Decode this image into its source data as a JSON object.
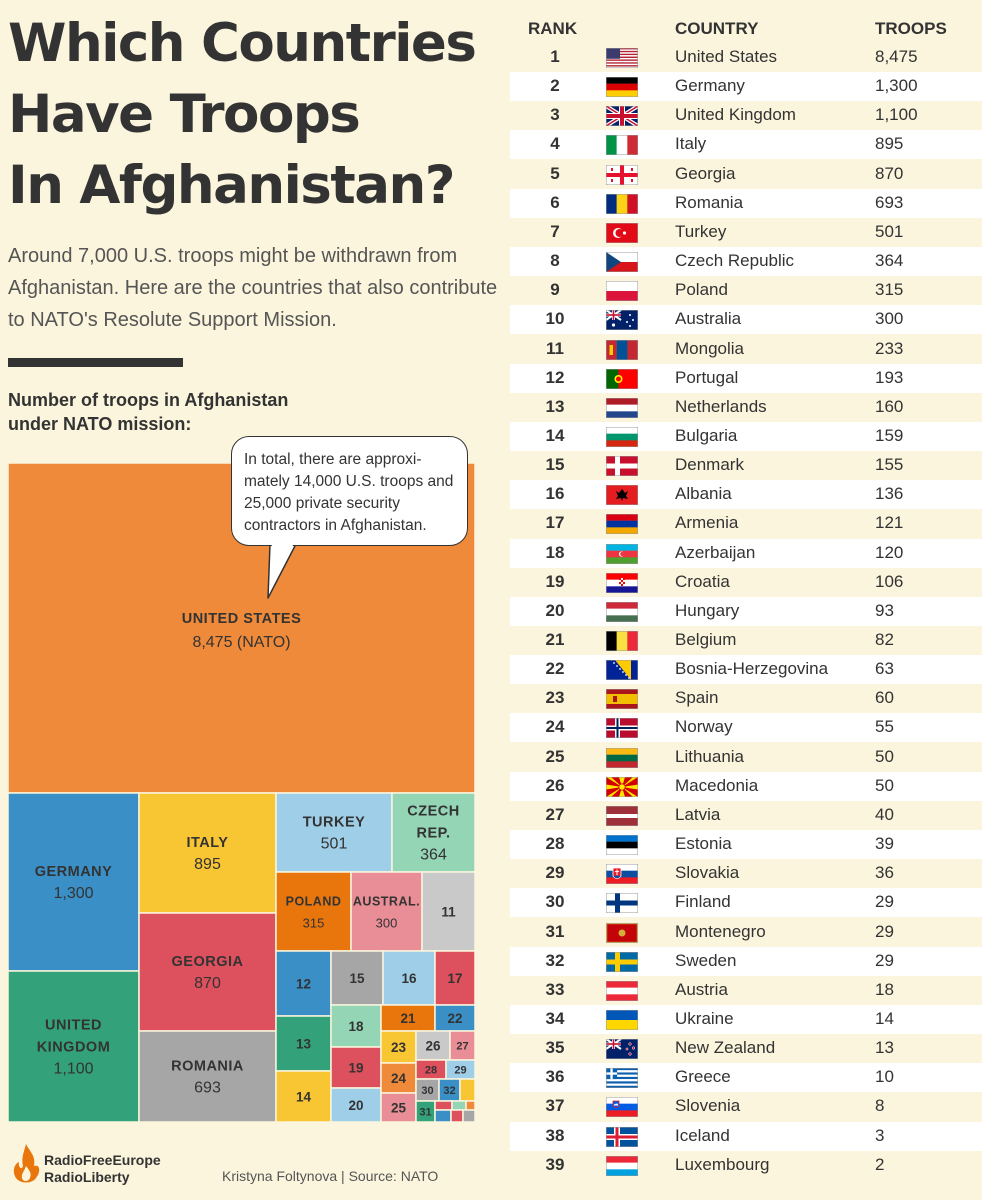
{
  "header": {
    "title_lines": [
      "Which Countries",
      "Have Troops",
      "In Afghanistan?"
    ],
    "subtitle": "Around 7,000 U.S. troops might be withdrawn from Afghanistan. Here are the countries that also contribute to NATO's Resolute Support Mission.",
    "chart_label": "Number of troops in Afghanistan under NATO mission:"
  },
  "callout": {
    "text": "In total, there are approxi-mately 14,000 U.S. troops and 25,000 private security contractors in Afghanistan."
  },
  "table": {
    "headers": {
      "rank": "RANK",
      "country": "COUNTRY",
      "troops": "TROOPS"
    },
    "rows": [
      {
        "rank": "1",
        "country": "United States",
        "troops": "8,475",
        "flag": "us"
      },
      {
        "rank": "2",
        "country": "Germany",
        "troops": "1,300",
        "flag": "de"
      },
      {
        "rank": "3",
        "country": "United Kingdom",
        "troops": "1,100",
        "flag": "gb"
      },
      {
        "rank": "4",
        "country": "Italy",
        "troops": "895",
        "flag": "it"
      },
      {
        "rank": "5",
        "country": "Georgia",
        "troops": "870",
        "flag": "ge"
      },
      {
        "rank": "6",
        "country": "Romania",
        "troops": "693",
        "flag": "ro"
      },
      {
        "rank": "7",
        "country": "Turkey",
        "troops": "501",
        "flag": "tr"
      },
      {
        "rank": "8",
        "country": "Czech Republic",
        "troops": "364",
        "flag": "cz"
      },
      {
        "rank": "9",
        "country": "Poland",
        "troops": "315",
        "flag": "pl"
      },
      {
        "rank": "10",
        "country": "Australia",
        "troops": "300",
        "flag": "au"
      },
      {
        "rank": "11",
        "country": "Mongolia",
        "troops": "233",
        "flag": "mn"
      },
      {
        "rank": "12",
        "country": "Portugal",
        "troops": "193",
        "flag": "pt"
      },
      {
        "rank": "13",
        "country": "Netherlands",
        "troops": "160",
        "flag": "nl"
      },
      {
        "rank": "14",
        "country": "Bulgaria",
        "troops": "159",
        "flag": "bg"
      },
      {
        "rank": "15",
        "country": "Denmark",
        "troops": "155",
        "flag": "dk"
      },
      {
        "rank": "16",
        "country": "Albania",
        "troops": "136",
        "flag": "al"
      },
      {
        "rank": "17",
        "country": "Armenia",
        "troops": "121",
        "flag": "am"
      },
      {
        "rank": "18",
        "country": "Azerbaijan",
        "troops": "120",
        "flag": "az"
      },
      {
        "rank": "19",
        "country": "Croatia",
        "troops": "106",
        "flag": "hr"
      },
      {
        "rank": "20",
        "country": "Hungary",
        "troops": "93",
        "flag": "hu"
      },
      {
        "rank": "21",
        "country": "Belgium",
        "troops": "82",
        "flag": "be"
      },
      {
        "rank": "22",
        "country": "Bosnia-Herzegovina",
        "troops": "63",
        "flag": "ba"
      },
      {
        "rank": "23",
        "country": "Spain",
        "troops": "60",
        "flag": "es"
      },
      {
        "rank": "24",
        "country": "Norway",
        "troops": "55",
        "flag": "no"
      },
      {
        "rank": "25",
        "country": "Lithuania",
        "troops": "50",
        "flag": "lt"
      },
      {
        "rank": "26",
        "country": "Macedonia",
        "troops": "50",
        "flag": "mk"
      },
      {
        "rank": "27",
        "country": "Latvia",
        "troops": "40",
        "flag": "lv"
      },
      {
        "rank": "28",
        "country": "Estonia",
        "troops": "39",
        "flag": "ee"
      },
      {
        "rank": "29",
        "country": "Slovakia",
        "troops": "36",
        "flag": "sk"
      },
      {
        "rank": "30",
        "country": "Finland",
        "troops": "29",
        "flag": "fi"
      },
      {
        "rank": "31",
        "country": "Montenegro",
        "troops": "29",
        "flag": "me"
      },
      {
        "rank": "32",
        "country": "Sweden",
        "troops": "29",
        "flag": "se"
      },
      {
        "rank": "33",
        "country": "Austria",
        "troops": "18",
        "flag": "at"
      },
      {
        "rank": "34",
        "country": "Ukraine",
        "troops": "14",
        "flag": "ua"
      },
      {
        "rank": "35",
        "country": "New Zealand",
        "troops": "13",
        "flag": "nz"
      },
      {
        "rank": "36",
        "country": "Greece",
        "troops": "10",
        "flag": "gr"
      },
      {
        "rank": "37",
        "country": "Slovenia",
        "troops": "8",
        "flag": "si"
      },
      {
        "rank": "38",
        "country": "Iceland",
        "troops": "3",
        "flag": "is"
      },
      {
        "rank": "39",
        "country": "Luxembourg",
        "troops": "2",
        "flag": "lu"
      }
    ]
  },
  "chart_data": {
    "type": "heatmap",
    "subtype": "treemap",
    "cells": [
      {
        "id": "us",
        "rank": 1,
        "label_lines": [
          "UNITED STATES"
        ],
        "value_label": "8,475 (NATO)",
        "value": 8475,
        "color": "#ef8a3a"
      },
      {
        "id": "de",
        "rank": 2,
        "label_lines": [
          "GERMANY"
        ],
        "value_label": "1,300",
        "value": 1300,
        "color": "#3a8fc6"
      },
      {
        "id": "gb",
        "rank": 3,
        "label_lines": [
          "UNITED",
          "KINGDOM"
        ],
        "value_label": "1,100",
        "value": 1100,
        "color": "#33a27a"
      },
      {
        "id": "it",
        "rank": 4,
        "label_lines": [
          "ITALY"
        ],
        "value_label": "895",
        "value": 895,
        "color": "#f8c533"
      },
      {
        "id": "ge",
        "rank": 5,
        "label_lines": [
          "GEORGIA"
        ],
        "value_label": "870",
        "value": 870,
        "color": "#dd505d"
      },
      {
        "id": "ro",
        "rank": 6,
        "label_lines": [
          "ROMANIA"
        ],
        "value_label": "693",
        "value": 693,
        "color": "#a6a6a6"
      },
      {
        "id": "tr",
        "rank": 7,
        "label_lines": [
          "TURKEY"
        ],
        "value_label": "501",
        "value": 501,
        "color": "#9fcfe8"
      },
      {
        "id": "cz",
        "rank": 8,
        "label_lines": [
          "CZECH",
          "REP."
        ],
        "value_label": "364",
        "value": 364,
        "color": "#93d5b5"
      },
      {
        "id": "pl",
        "rank": 9,
        "label_lines": [
          "POLAND"
        ],
        "value_label": "315",
        "value": 315,
        "color": "#e8760c"
      },
      {
        "id": "au",
        "rank": 10,
        "label_lines": [
          "AUSTRAL."
        ],
        "value_label": "300",
        "value": 300,
        "color": "#e98e96"
      },
      {
        "id": "mn",
        "rank": 11,
        "label_lines": [
          "11"
        ],
        "value_label": "",
        "value": 233,
        "color": "#c9c9c9"
      },
      {
        "id": "pt",
        "rank": 12,
        "label_lines": [
          "12"
        ],
        "value_label": "",
        "value": 193,
        "color": "#3a8fc6"
      },
      {
        "id": "nl",
        "rank": 13,
        "label_lines": [
          "13"
        ],
        "value_label": "",
        "value": 160,
        "color": "#33a27a"
      },
      {
        "id": "bg",
        "rank": 14,
        "label_lines": [
          "14"
        ],
        "value_label": "",
        "value": 159,
        "color": "#f8c533"
      },
      {
        "id": "dk",
        "rank": 15,
        "label_lines": [
          "15"
        ],
        "value_label": "",
        "value": 155,
        "color": "#a6a6a6"
      },
      {
        "id": "al",
        "rank": 16,
        "label_lines": [
          "16"
        ],
        "value_label": "",
        "value": 136,
        "color": "#9fcfe8"
      },
      {
        "id": "am",
        "rank": 17,
        "label_lines": [
          "17"
        ],
        "value_label": "",
        "value": 121,
        "color": "#dd505d"
      },
      {
        "id": "az",
        "rank": 18,
        "label_lines": [
          "18"
        ],
        "value_label": "",
        "value": 120,
        "color": "#93d5b5"
      },
      {
        "id": "hr",
        "rank": 19,
        "label_lines": [
          "19"
        ],
        "value_label": "",
        "value": 106,
        "color": "#dd505d"
      },
      {
        "id": "hu",
        "rank": 20,
        "label_lines": [
          "20"
        ],
        "value_label": "",
        "value": 93,
        "color": "#9fcfe8"
      },
      {
        "id": "be",
        "rank": 21,
        "label_lines": [
          "21"
        ],
        "value_label": "",
        "value": 82,
        "color": "#e8760c"
      },
      {
        "id": "ba",
        "rank": 22,
        "label_lines": [
          "22"
        ],
        "value_label": "",
        "value": 63,
        "color": "#3a8fc6"
      },
      {
        "id": "es",
        "rank": 23,
        "label_lines": [
          "23"
        ],
        "value_label": "",
        "value": 60,
        "color": "#f8c533"
      },
      {
        "id": "no",
        "rank": 24,
        "label_lines": [
          "24"
        ],
        "value_label": "",
        "value": 55,
        "color": "#ef8a3a"
      },
      {
        "id": "lt",
        "rank": 25,
        "label_lines": [
          "25"
        ],
        "value_label": "",
        "value": 50,
        "color": "#e98e96"
      },
      {
        "id": "mk",
        "rank": 26,
        "label_lines": [
          "26"
        ],
        "value_label": "",
        "value": 50,
        "color": "#c9c9c9"
      },
      {
        "id": "lv",
        "rank": 27,
        "label_lines": [
          "27"
        ],
        "value_label": "",
        "value": 40,
        "color": "#e98e96"
      },
      {
        "id": "ee",
        "rank": 28,
        "label_lines": [
          "28"
        ],
        "value_label": "",
        "value": 39,
        "color": "#dd505d"
      },
      {
        "id": "sk",
        "rank": 29,
        "label_lines": [
          "29"
        ],
        "value_label": "",
        "value": 36,
        "color": "#9fcfe8"
      },
      {
        "id": "fi",
        "rank": 30,
        "label_lines": [
          "30"
        ],
        "value_label": "",
        "value": 29,
        "color": "#a6a6a6"
      },
      {
        "id": "me",
        "rank": 31,
        "label_lines": [
          "31"
        ],
        "value_label": "",
        "value": 29,
        "color": "#33a27a"
      },
      {
        "id": "se",
        "rank": 32,
        "label_lines": [
          "32"
        ],
        "value_label": "",
        "value": 29,
        "color": "#3a8fc6"
      },
      {
        "id": "at",
        "rank": 33,
        "label_lines": [
          ""
        ],
        "value_label": "",
        "value": 18,
        "color": "#f8c533"
      },
      {
        "id": "ua",
        "rank": 34,
        "label_lines": [
          ""
        ],
        "value_label": "",
        "value": 14,
        "color": "#dd505d"
      },
      {
        "id": "nz",
        "rank": 35,
        "label_lines": [
          ""
        ],
        "value_label": "",
        "value": 13,
        "color": "#93d5b5"
      },
      {
        "id": "gr",
        "rank": 36,
        "label_lines": [
          ""
        ],
        "value_label": "",
        "value": 10,
        "color": "#ef8a3a"
      },
      {
        "id": "si",
        "rank": 37,
        "label_lines": [
          ""
        ],
        "value_label": "",
        "value": 8,
        "color": "#3a8fc6"
      },
      {
        "id": "is",
        "rank": 38,
        "label_lines": [
          ""
        ],
        "value_label": "",
        "value": 3,
        "color": "#dd505d"
      },
      {
        "id": "lu",
        "rank": 39,
        "label_lines": [
          ""
        ],
        "value_label": "",
        "value": 2,
        "color": "#a6a6a6"
      }
    ]
  },
  "footer": {
    "logo_lines": [
      "RadioFreeEurope",
      "RadioLiberty"
    ],
    "credit": "Kristyna Foltynova | Source: NATO"
  },
  "colors": {
    "background": "#fbf5dd",
    "text": "#333333",
    "row_alt": "#ffffff",
    "logo_orange": "#e8760c"
  }
}
